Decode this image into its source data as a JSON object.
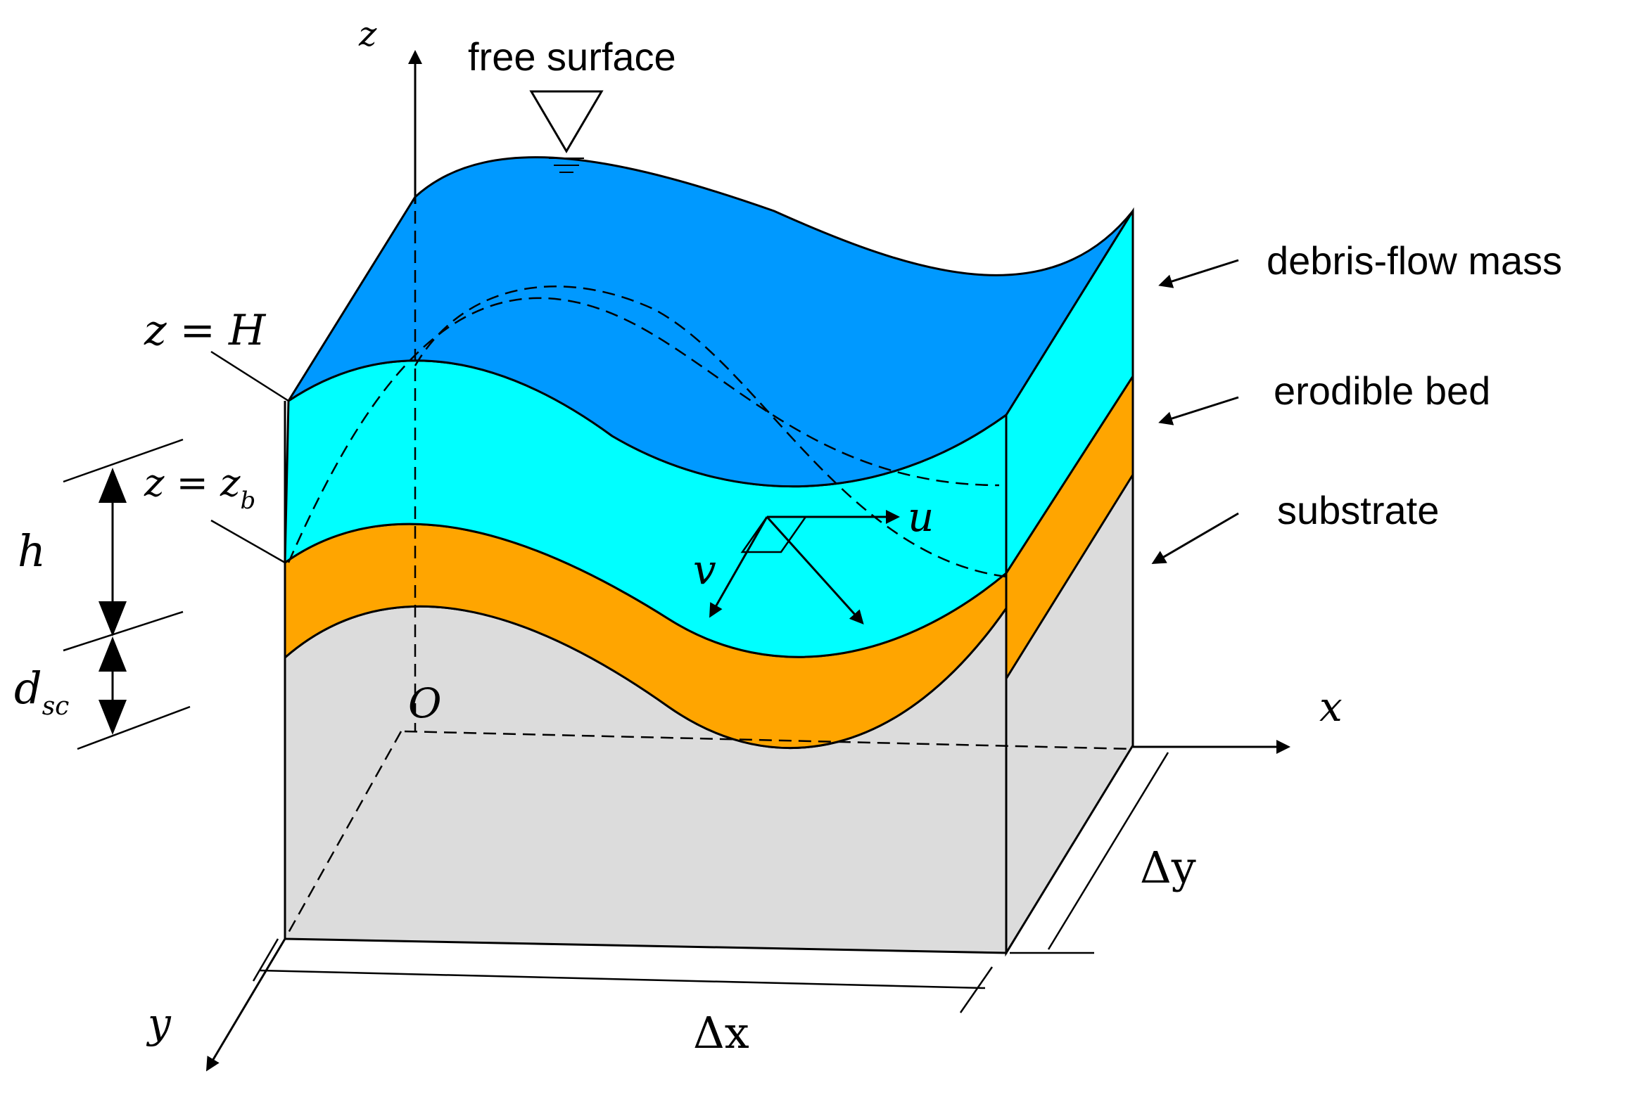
{
  "labels": {
    "free_surface": "free surface",
    "debris_flow_mass": "debris-flow mass",
    "erodible_bed": "erodible bed",
    "substrate": "substrate",
    "z_axis": "z",
    "x_axis": "x",
    "y_axis": "y",
    "origin": "O",
    "z_eq_H": "z = H",
    "z_eq_zb_main": "z = z",
    "z_eq_zb_sub": "b",
    "h": "h",
    "d_sc_main": "d",
    "d_sc_sub": "sc",
    "u": "u",
    "v": "v",
    "delta_x": "Δx",
    "delta_y": "Δy"
  },
  "colors": {
    "free_surface_top": "#0099ff",
    "debris_flow_mass": "#00ffff",
    "erodible_bed": "#ffa500",
    "substrate": "#dcdcdc",
    "line": "#000000"
  }
}
